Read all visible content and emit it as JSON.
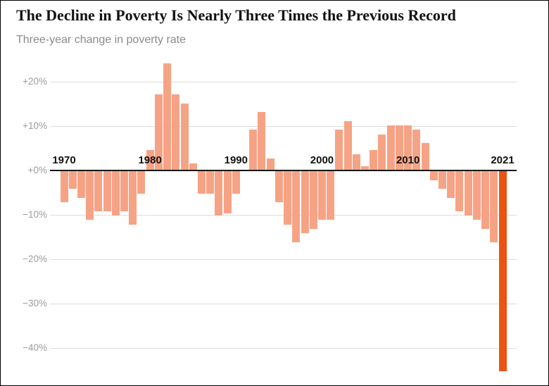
{
  "header": {
    "title": "The Decline in Poverty Is Nearly Three Times the Previous Record",
    "subtitle": "Three-year change in poverty rate"
  },
  "chart_data": {
    "type": "bar",
    "title": "The Decline in Poverty Is Nearly Three Times the Previous Record",
    "subtitle": "Three-year change in poverty rate",
    "ylabel": "Three-year change in poverty rate (%)",
    "ylim": [
      -47,
      25
    ],
    "grid": true,
    "highlight_year": 2021,
    "colors": {
      "bar": "#F6A385",
      "highlight": "#EB5313",
      "grid": "#DCDCDC",
      "zero_line": "#161616",
      "tick_label": "#9B9B9B",
      "year_label": "#121212"
    },
    "yticks": [
      {
        "label": "+20%",
        "value": 20
      },
      {
        "label": "+10%",
        "value": 10
      },
      {
        "label": "+0%",
        "value": 0
      },
      {
        "label": "−10%",
        "value": -10
      },
      {
        "label": "−20%",
        "value": -20
      },
      {
        "label": "−30%",
        "value": -30
      },
      {
        "label": "−40%",
        "value": -40
      }
    ],
    "year_labels": [
      {
        "label": "1970",
        "year": 1970
      },
      {
        "label": "1980",
        "year": 1980
      },
      {
        "label": "1990",
        "year": 1990
      },
      {
        "label": "2000",
        "year": 2000
      },
      {
        "label": "2010",
        "year": 2010
      },
      {
        "label": "2021",
        "year": 2021
      }
    ],
    "x": [
      1970,
      1971,
      1972,
      1973,
      1974,
      1975,
      1976,
      1977,
      1978,
      1979,
      1980,
      1981,
      1982,
      1983,
      1984,
      1985,
      1986,
      1987,
      1988,
      1989,
      1990,
      1991,
      1992,
      1993,
      1994,
      1995,
      1996,
      1997,
      1998,
      1999,
      2000,
      2001,
      2002,
      2003,
      2004,
      2005,
      2006,
      2007,
      2008,
      2009,
      2010,
      2011,
      2012,
      2013,
      2014,
      2015,
      2016,
      2017,
      2018,
      2019,
      2020,
      2021
    ],
    "values": [
      -7,
      -4,
      -6,
      -11,
      -9,
      -9,
      -10,
      -9,
      -12,
      -5,
      4.5,
      17,
      24,
      17,
      15,
      1.5,
      -5,
      -5,
      -10,
      -9.5,
      -5,
      0,
      9,
      13,
      2.5,
      -7,
      -12,
      -16,
      -14,
      -13,
      -11,
      -11,
      9,
      11,
      3.5,
      0.8,
      4.5,
      8,
      10,
      10,
      10,
      9,
      6,
      -2,
      -4,
      -6,
      -9,
      -10,
      -11,
      -13,
      -16,
      -45
    ]
  }
}
